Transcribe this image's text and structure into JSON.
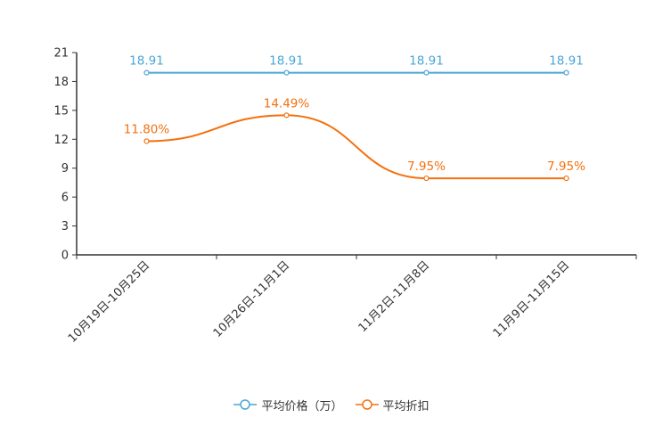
{
  "chart_data": {
    "type": "line",
    "categories": [
      "10月19日-10月25日",
      "10月26日-11月1日",
      "11月2日-11月8日",
      "11月9日-11月15日"
    ],
    "series": [
      {
        "name": "平均价格（万）",
        "values": [
          18.91,
          18.91,
          18.91,
          18.91
        ],
        "labels": [
          "18.91",
          "18.91",
          "18.91",
          "18.91"
        ],
        "color": "#4aa6d6",
        "smooth": false
      },
      {
        "name": "平均折扣",
        "values": [
          11.8,
          14.49,
          7.95,
          7.95
        ],
        "labels": [
          "11.80%",
          "14.49%",
          "7.95%",
          "7.95%"
        ],
        "color": "#f4700e",
        "smooth": true
      }
    ],
    "yticks": [
      "0",
      "3",
      "6",
      "9",
      "12",
      "15",
      "18",
      "21"
    ],
    "ylim": [
      0,
      21
    ],
    "xlabel": "",
    "ylabel": "",
    "grid": false,
    "legend_position": "bottom-center"
  }
}
